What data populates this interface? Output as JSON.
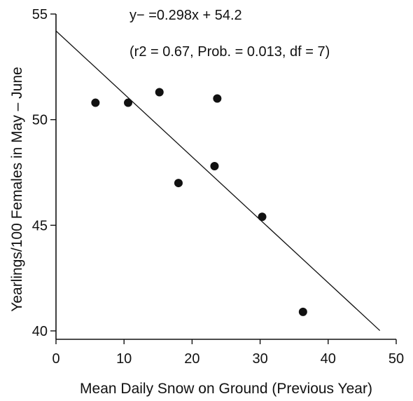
{
  "chart_data": {
    "type": "scatter",
    "title": "",
    "xlabel": "Mean Daily Snow on Ground (Previous Year)",
    "ylabel": "Yearlings/100 Females in May – June",
    "xlim": [
      0,
      50
    ],
    "ylim": [
      40,
      55
    ],
    "x_ticks": [
      0,
      10,
      20,
      30,
      40,
      50
    ],
    "y_ticks": [
      40,
      45,
      50,
      55
    ],
    "grid": false,
    "legend": "none",
    "series": [
      {
        "points": [
          {
            "x": 5.8,
            "y": 50.8
          },
          {
            "x": 10.6,
            "y": 50.8
          },
          {
            "x": 15.2,
            "y": 51.3
          },
          {
            "x": 18.0,
            "y": 47.0
          },
          {
            "x": 23.3,
            "y": 47.8
          },
          {
            "x": 23.7,
            "y": 51.0
          },
          {
            "x": 30.3,
            "y": 45.4
          },
          {
            "x": 36.3,
            "y": 40.9
          }
        ]
      }
    ],
    "fit_line": {
      "intercept": 54.2,
      "slope": -0.298,
      "x_start": 0,
      "x_end": 47.6
    },
    "annotations": {
      "equation": "y− =0.298x + 54.2",
      "stats": "(r2 = 0.67, Prob. = 0.013, df = 7)"
    }
  },
  "colors": {
    "ink": "#111111",
    "background": "#ffffff"
  }
}
